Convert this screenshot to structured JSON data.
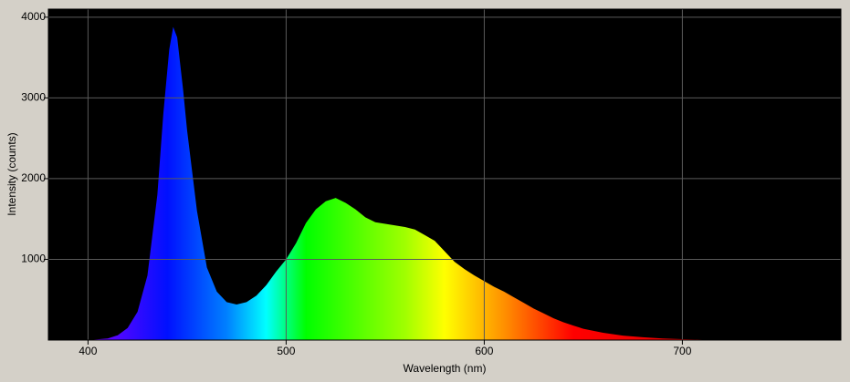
{
  "chart_data": {
    "type": "area",
    "xlabel": "Wavelength (nm)",
    "ylabel": "Intensity (counts)",
    "x": [
      400,
      410,
      415,
      420,
      425,
      430,
      435,
      438,
      441,
      443,
      445,
      448,
      450,
      455,
      460,
      465,
      470,
      475,
      480,
      485,
      490,
      495,
      500,
      505,
      510,
      515,
      520,
      525,
      530,
      535,
      540,
      545,
      550,
      555,
      560,
      565,
      570,
      575,
      580,
      585,
      590,
      595,
      600,
      605,
      610,
      615,
      620,
      625,
      630,
      635,
      640,
      645,
      650,
      660,
      670,
      680,
      690,
      700,
      710,
      720,
      740,
      760
    ],
    "values": [
      0,
      20,
      60,
      150,
      350,
      800,
      1800,
      2800,
      3600,
      3880,
      3750,
      3100,
      2600,
      1600,
      900,
      600,
      470,
      440,
      470,
      550,
      680,
      850,
      1000,
      1200,
      1450,
      1620,
      1720,
      1760,
      1700,
      1620,
      1520,
      1460,
      1440,
      1420,
      1400,
      1370,
      1300,
      1230,
      1100,
      970,
      880,
      800,
      730,
      660,
      600,
      530,
      460,
      390,
      330,
      270,
      220,
      180,
      140,
      90,
      55,
      35,
      20,
      12,
      6,
      3,
      0,
      0
    ],
    "xlim": [
      380,
      780
    ],
    "ylim": [
      0,
      4100
    ],
    "xticks": [
      400,
      500,
      600,
      700
    ],
    "yticks": [
      1000,
      2000,
      3000,
      4000
    ],
    "grid": true
  }
}
